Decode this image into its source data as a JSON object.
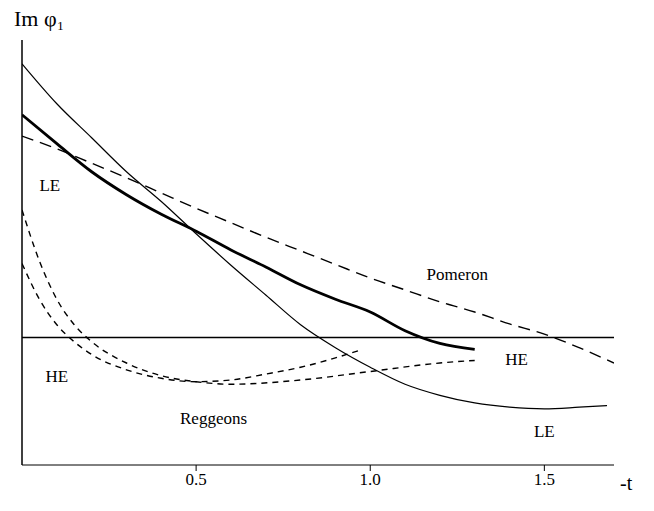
{
  "chart_data": {
    "type": "line",
    "x_label": "-t",
    "y_label": "Im φ₁",
    "xlim": [
      0,
      1.7
    ],
    "ylim": [
      -1.5,
      3.5
    ],
    "xticks": [
      0.5,
      {
        "value": 1.0,
        "label": "1.0"
      },
      1.5
    ],
    "tick_labels": "x",
    "grid": false,
    "annotations": [
      "Reggeons"
    ],
    "series": [
      {
        "name": "Pomeron",
        "color": "#000000",
        "line_style": "dashed",
        "x": [
          0,
          0.1,
          0.2,
          0.3,
          0.4,
          0.5,
          0.6,
          0.7,
          0.8,
          0.9,
          1.0,
          1.1,
          1.2,
          1.3,
          1.4,
          1.5,
          1.6,
          1.7
        ],
        "values": [
          2.37,
          2.22,
          2.05,
          1.88,
          1.7,
          1.52,
          1.35,
          1.18,
          1.02,
          0.86,
          0.7,
          0.56,
          0.42,
          0.3,
          0.16,
          0.04,
          -0.12,
          -0.3
        ]
      },
      {
        "name": "HE",
        "color": "#000000",
        "line_style": "solid",
        "x": [
          0,
          0.1,
          0.2,
          0.3,
          0.4,
          0.5,
          0.6,
          0.7,
          0.8,
          0.9,
          1.0,
          1.1,
          1.2,
          1.3
        ],
        "values": [
          2.62,
          2.28,
          1.95,
          1.68,
          1.45,
          1.25,
          1.03,
          0.83,
          0.62,
          0.45,
          0.3,
          0.08,
          -0.07,
          -0.14
        ]
      },
      {
        "name": "LE",
        "color": "#000000",
        "line_style": "solid",
        "x": [
          0,
          0.1,
          0.2,
          0.3,
          0.4,
          0.5,
          0.6,
          0.7,
          0.8,
          0.9,
          1.0,
          1.1,
          1.2,
          1.3,
          1.4,
          1.5,
          1.6,
          1.68
        ],
        "values": [
          3.22,
          2.75,
          2.35,
          1.95,
          1.6,
          1.22,
          0.85,
          0.5,
          0.15,
          -0.12,
          -0.35,
          -0.55,
          -0.68,
          -0.77,
          -0.82,
          -0.84,
          -0.82,
          -0.8
        ]
      },
      {
        "name": "LE",
        "color": "#000000",
        "line_style": "dashed",
        "x": [
          0,
          0.05,
          0.1,
          0.15,
          0.2,
          0.3,
          0.4,
          0.5,
          0.6,
          0.8,
          1.0,
          1.2,
          1.3
        ],
        "values": [
          1.5,
          0.9,
          0.45,
          0.15,
          -0.05,
          -0.3,
          -0.45,
          -0.52,
          -0.55,
          -0.5,
          -0.4,
          -0.3,
          -0.27
        ]
      },
      {
        "name": "HE",
        "color": "#000000",
        "line_style": "dashed",
        "x": [
          0,
          0.05,
          0.1,
          0.15,
          0.2,
          0.3,
          0.4,
          0.5,
          0.6,
          0.7,
          0.8,
          0.9,
          0.97
        ],
        "values": [
          0.87,
          0.45,
          0.15,
          -0.05,
          -0.2,
          -0.38,
          -0.48,
          -0.52,
          -0.5,
          -0.43,
          -0.35,
          -0.24,
          -0.15
        ]
      }
    ]
  }
}
